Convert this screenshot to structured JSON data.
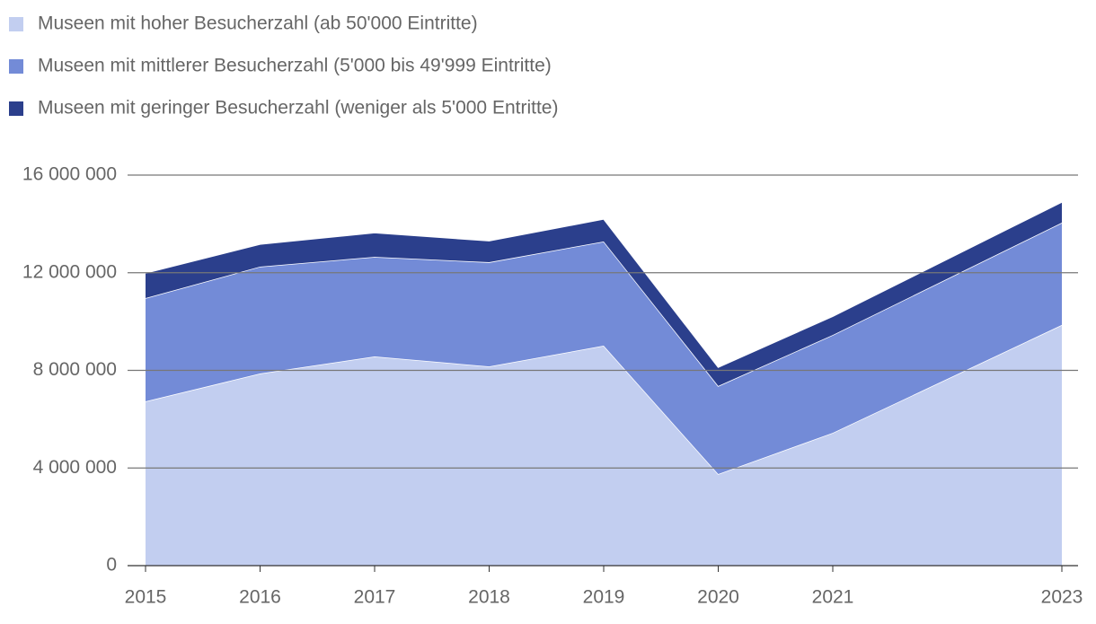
{
  "chart_data": {
    "type": "stacked-area",
    "x": [
      2015,
      2016,
      2017,
      2018,
      2019,
      2020,
      2021,
      2023
    ],
    "series": [
      {
        "name": "Museen mit hoher Besucherzahl (ab 50'000 Eintritte)",
        "color": "#c2cef0",
        "values": [
          6730000,
          7870000,
          8570000,
          8160000,
          9010000,
          3750000,
          5440000,
          9860000
        ]
      },
      {
        "name": "Museen mit mittlerer Besucherzahl (5'000 bis 49'999 Eintritte)",
        "color": "#738bd7",
        "values": [
          4230000,
          4380000,
          4080000,
          4270000,
          4270000,
          3610000,
          4010000,
          4190000
        ]
      },
      {
        "name": "Museen mit geringer Besucherzahl (weniger als 5'000 Entritte)",
        "color": "#2b3f8c",
        "values": [
          1030000,
          920000,
          990000,
          880000,
          920000,
          770000,
          770000,
          850000
        ]
      }
    ],
    "xlim": [
      2015,
      2023
    ],
    "xticks": [
      2015,
      2016,
      2017,
      2018,
      2019,
      2020,
      2021,
      2023
    ],
    "ylim": [
      0,
      16000000
    ],
    "yticks": [
      0,
      {
        "value": 4000000,
        "label": "4 000 000"
      },
      {
        "value": 8000000,
        "label": "8 000 000"
      },
      {
        "value": 12000000,
        "label": "12 000 000"
      },
      {
        "value": 16000000,
        "label": "16 000 000"
      }
    ],
    "grid": true,
    "legend": "top-left"
  }
}
